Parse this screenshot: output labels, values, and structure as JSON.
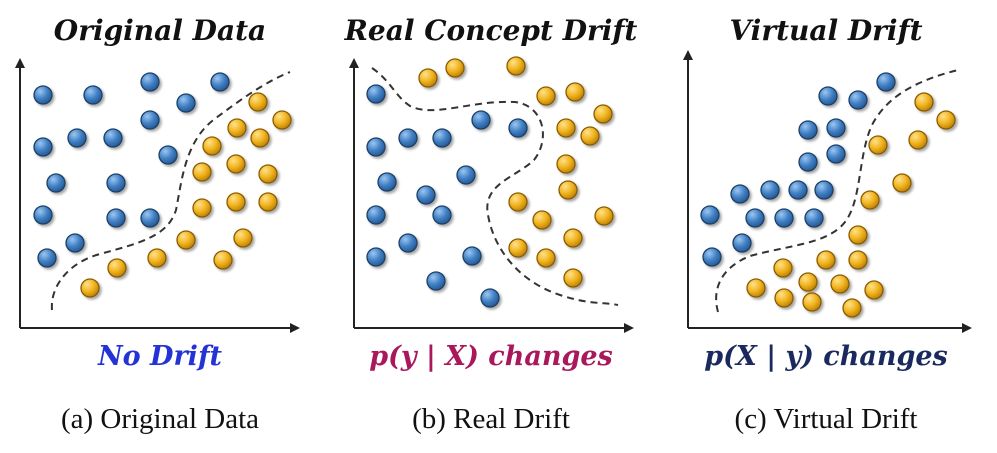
{
  "colors": {
    "class_a": "#3f7fc4",
    "class_a_edge": "#1d3f66",
    "class_b": "#f0b21c",
    "class_b_edge": "#8a5c06",
    "axis": "#222222",
    "boundary": "#333333",
    "no_drift_text": "#2433d6",
    "real_drift_text": "#a8185a",
    "virtual_drift_text": "#1b2a5e"
  },
  "panels": [
    {
      "title": "Original Data",
      "subtitle": "No Drift",
      "caption": "(a) Original Data",
      "class_a": [
        [
          43,
          95
        ],
        [
          93,
          95
        ],
        [
          150,
          82
        ],
        [
          220,
          82
        ],
        [
          186,
          103
        ],
        [
          150,
          120
        ],
        [
          43,
          147
        ],
        [
          77,
          138
        ],
        [
          113,
          138
        ],
        [
          168,
          155
        ],
        [
          56,
          183
        ],
        [
          116,
          183
        ],
        [
          43,
          215
        ],
        [
          116,
          218
        ],
        [
          150,
          218
        ],
        [
          75,
          243
        ],
        [
          47,
          258
        ]
      ],
      "class_b": [
        [
          258,
          102
        ],
        [
          282,
          120
        ],
        [
          237,
          128
        ],
        [
          260,
          138
        ],
        [
          212,
          146
        ],
        [
          236,
          164
        ],
        [
          268,
          174
        ],
        [
          202,
          172
        ],
        [
          236,
          202
        ],
        [
          268,
          202
        ],
        [
          202,
          208
        ],
        [
          186,
          240
        ],
        [
          243,
          238
        ],
        [
          223,
          260
        ],
        [
          157,
          258
        ],
        [
          117,
          268
        ],
        [
          90,
          288
        ]
      ]
    },
    {
      "title": "Real Concept Drift",
      "subtitle": "p(y | X) changes",
      "caption": "(b) Real Drift",
      "class_a": [
        [
          376,
          94
        ],
        [
          376,
          147
        ],
        [
          408,
          138
        ],
        [
          442,
          138
        ],
        [
          481,
          120
        ],
        [
          518,
          128
        ],
        [
          466,
          175
        ],
        [
          387,
          182
        ],
        [
          426,
          195
        ],
        [
          376,
          215
        ],
        [
          442,
          215
        ],
        [
          408,
          243
        ],
        [
          376,
          257
        ],
        [
          472,
          256
        ],
        [
          436,
          281
        ],
        [
          490,
          298
        ]
      ],
      "class_b": [
        [
          428,
          78
        ],
        [
          455,
          68
        ],
        [
          516,
          66
        ],
        [
          546,
          96
        ],
        [
          575,
          92
        ],
        [
          603,
          114
        ],
        [
          566,
          128
        ],
        [
          590,
          136
        ],
        [
          566,
          164
        ],
        [
          568,
          190
        ],
        [
          518,
          202
        ],
        [
          542,
          220
        ],
        [
          604,
          216
        ],
        [
          573,
          238
        ],
        [
          518,
          248
        ],
        [
          546,
          258
        ],
        [
          573,
          278
        ]
      ]
    },
    {
      "title": "Virtual Drift",
      "subtitle": "p(X | y) changes",
      "caption": "(c) Virtual Drift",
      "class_a": [
        [
          886,
          82
        ],
        [
          828,
          96
        ],
        [
          858,
          100
        ],
        [
          836,
          128
        ],
        [
          808,
          130
        ],
        [
          836,
          154
        ],
        [
          808,
          162
        ],
        [
          740,
          194
        ],
        [
          770,
          190
        ],
        [
          798,
          190
        ],
        [
          824,
          190
        ],
        [
          710,
          215
        ],
        [
          755,
          218
        ],
        [
          784,
          218
        ],
        [
          814,
          218
        ],
        [
          742,
          243
        ],
        [
          712,
          257
        ]
      ],
      "class_b": [
        [
          924,
          102
        ],
        [
          946,
          120
        ],
        [
          918,
          140
        ],
        [
          878,
          145
        ],
        [
          902,
          183
        ],
        [
          870,
          200
        ],
        [
          858,
          235
        ],
        [
          783,
          268
        ],
        [
          826,
          260
        ],
        [
          858,
          260
        ],
        [
          808,
          282
        ],
        [
          756,
          288
        ],
        [
          784,
          298
        ],
        [
          812,
          302
        ],
        [
          840,
          284
        ],
        [
          874,
          290
        ],
        [
          852,
          308
        ]
      ]
    }
  ]
}
